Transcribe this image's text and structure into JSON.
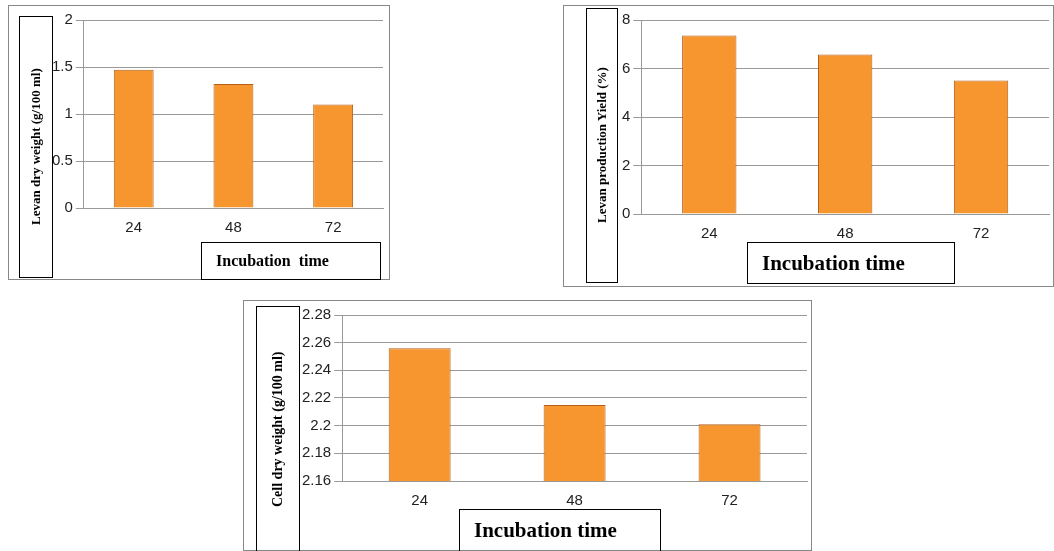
{
  "chart_data": [
    {
      "type": "bar",
      "xlabel": "Incubation  time",
      "ylabel": "Levan dry weight (g/100 ml)",
      "categories": [
        "24",
        "48",
        "72"
      ],
      "values": [
        1.47,
        1.32,
        1.1
      ],
      "color": "#f7962f",
      "ylim": [
        0,
        2
      ],
      "yticks": [
        0,
        0.5,
        1,
        1.5,
        2
      ],
      "grid": "y"
    },
    {
      "type": "bar",
      "xlabel": "Incubation time",
      "ylabel": "Levan production Yield (%)",
      "categories": [
        "24",
        "48",
        "72"
      ],
      "values": [
        7.36,
        6.58,
        5.51
      ],
      "color": "#f7962f",
      "ylim": [
        0,
        8
      ],
      "yticks": [
        0,
        2,
        4,
        6,
        8
      ],
      "grid": "y"
    },
    {
      "type": "bar",
      "xlabel": "Incubation time",
      "ylabel": "Cell dry weight (g/100 ml)",
      "categories": [
        "24",
        "48",
        "72"
      ],
      "values": [
        2.256,
        2.215,
        2.201
      ],
      "color": "#f7962f",
      "ylim": [
        2.16,
        2.28
      ],
      "yticks": [
        2.16,
        2.18,
        2.2,
        2.22,
        2.24,
        2.26,
        2.28
      ],
      "grid": "y"
    }
  ]
}
